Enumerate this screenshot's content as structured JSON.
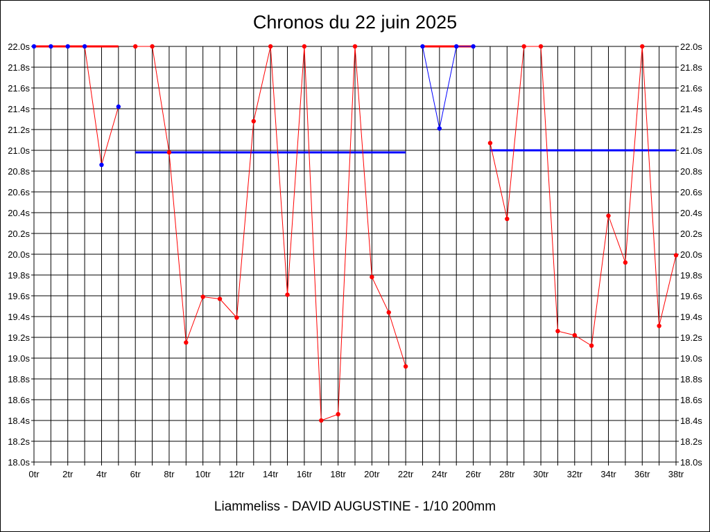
{
  "chart_data": {
    "type": "line",
    "title": "Chronos du 22 juin 2025",
    "subtitle": "Liammeliss - DAVID AUGUSTINE - 1/10 200mm",
    "xlim": [
      0,
      38
    ],
    "ylim": [
      18.0,
      22.0
    ],
    "x_tick_step": 2,
    "y_tick_step": 0.2,
    "x_tick_suffix": "tr",
    "y_tick_suffix": "s",
    "grid": true,
    "series": [
      {
        "color": "#ff0000",
        "markers": "#0000ff",
        "points": [
          [
            0,
            22.0
          ],
          [
            1,
            22.0
          ],
          [
            2,
            22.0
          ],
          [
            3,
            22.0
          ],
          [
            4,
            20.86
          ],
          [
            5,
            21.42
          ]
        ]
      },
      {
        "color": "#ff0000",
        "markers": "#ff0000",
        "points": [
          [
            6,
            22.0
          ],
          [
            7,
            22.0
          ],
          [
            8,
            20.98
          ],
          [
            9,
            19.15
          ],
          [
            10,
            19.59
          ],
          [
            11,
            19.57
          ],
          [
            12,
            19.39
          ],
          [
            13,
            21.28
          ],
          [
            14,
            22.0
          ],
          [
            15,
            19.61
          ],
          [
            16,
            22.0
          ],
          [
            17,
            18.4
          ],
          [
            18,
            18.46
          ],
          [
            19,
            22.0
          ],
          [
            20,
            19.78
          ],
          [
            21,
            19.44
          ],
          [
            22,
            18.92
          ]
        ]
      },
      {
        "color": "#0000ff",
        "markers": "#0000ff",
        "points": [
          [
            23,
            22.0
          ],
          [
            24,
            21.21
          ],
          [
            25,
            22.0
          ],
          [
            26,
            22.0
          ]
        ]
      },
      {
        "color": "#ff0000",
        "markers": "#ff0000",
        "points": [
          [
            27,
            21.07
          ],
          [
            28,
            20.34
          ],
          [
            29,
            22.0
          ],
          [
            30,
            22.0
          ],
          [
            31,
            19.26
          ],
          [
            32,
            19.22
          ],
          [
            33,
            19.12
          ],
          [
            34,
            20.37
          ],
          [
            35,
            19.92
          ],
          [
            36,
            22.0
          ],
          [
            37,
            19.31
          ],
          [
            38,
            19.99
          ]
        ]
      }
    ],
    "reference_lines": [
      {
        "color": "#ff0000",
        "x": [
          0,
          5
        ],
        "y": 22.0
      },
      {
        "color": "#0000ff",
        "x": [
          6,
          22
        ],
        "y": 20.98
      },
      {
        "color": "#ff0000",
        "x": [
          23,
          26
        ],
        "y": 22.0
      },
      {
        "color": "#0000ff",
        "x": [
          27,
          38
        ],
        "y": 21.0
      }
    ]
  }
}
